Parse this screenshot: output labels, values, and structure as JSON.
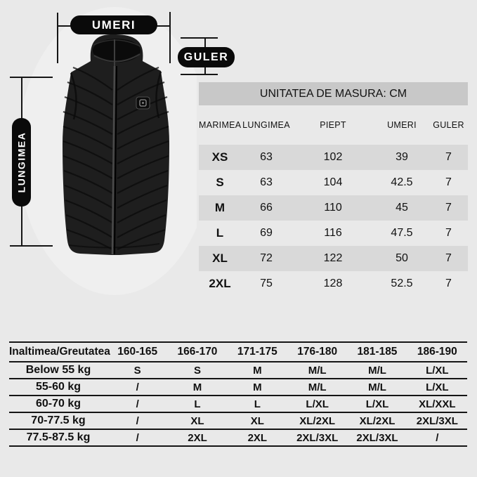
{
  "colors": {
    "page-bg": "#e9e9e9",
    "banner-bg": "#c8c8c8",
    "row-alt-bg": "#d9d9d9",
    "text": "#111111",
    "pill-bg": "#0a0a0a",
    "pill-text": "#ffffff",
    "line": "#151515",
    "vest": "#1e1e1e"
  },
  "diagram": {
    "labels": {
      "shoulders": "UMERI",
      "collar": "GULER",
      "length": "LUNGIMEA"
    }
  },
  "size_table": {
    "title": "UNITATEA DE MASURA: CM",
    "columns": [
      "MARIMEA",
      "LUNGIMEA",
      "PIEPT",
      "UMERI",
      "GULER"
    ],
    "rows": [
      {
        "size": "XS",
        "values": [
          "63",
          "102",
          "39",
          "7"
        ]
      },
      {
        "size": "S",
        "values": [
          "63",
          "104",
          "42.5",
          "7"
        ]
      },
      {
        "size": "M",
        "values": [
          "66",
          "110",
          "45",
          "7"
        ]
      },
      {
        "size": "L",
        "values": [
          "69",
          "116",
          "47.5",
          "7"
        ]
      },
      {
        "size": "XL",
        "values": [
          "72",
          "122",
          "50",
          "7"
        ]
      },
      {
        "size": "2XL",
        "values": [
          "75",
          "128",
          "52.5",
          "7"
        ]
      }
    ]
  },
  "fit_table": {
    "header": [
      "Inaltimea/Greutatea",
      "160-165",
      "166-170",
      "171-175",
      "176-180",
      "181-185",
      "186-190"
    ],
    "rows": [
      {
        "label": "Below 55 kg",
        "values": [
          "S",
          "S",
          "M",
          "M/L",
          "M/L",
          "L/XL"
        ]
      },
      {
        "label": "55-60 kg",
        "values": [
          "/",
          "M",
          "M",
          "M/L",
          "M/L",
          "L/XL"
        ]
      },
      {
        "label": "60-70 kg",
        "values": [
          "/",
          "L",
          "L",
          "L/XL",
          "L/XL",
          "XL/XXL"
        ]
      },
      {
        "label": "70-77.5 kg",
        "values": [
          "/",
          "XL",
          "XL",
          "XL/2XL",
          "XL/2XL",
          "2XL/3XL"
        ]
      },
      {
        "label": "77.5-87.5 kg",
        "values": [
          "/",
          "2XL",
          "2XL",
          "2XL/3XL",
          "2XL/3XL",
          "/"
        ]
      }
    ]
  }
}
